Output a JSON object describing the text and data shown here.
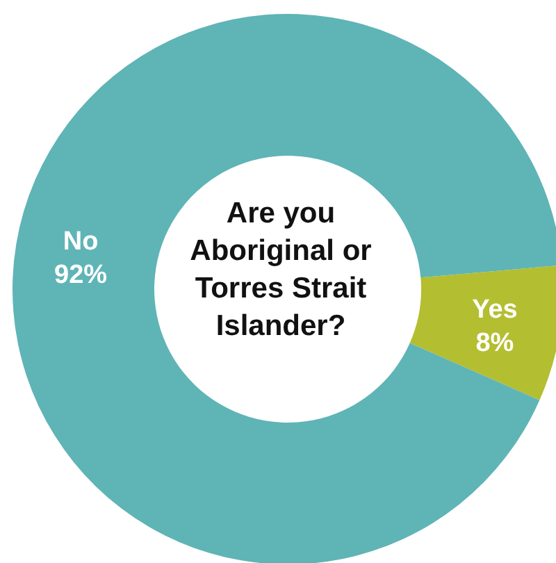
{
  "chart_data": {
    "type": "donut",
    "title": "Are you Aboriginal or Torres Strait Islander?",
    "categories": [
      "No",
      "Yes"
    ],
    "values": [
      92,
      8
    ],
    "colors": [
      "#5fb4b6",
      "#b4be31"
    ],
    "value_labels": [
      "92%",
      "8%"
    ]
  }
}
